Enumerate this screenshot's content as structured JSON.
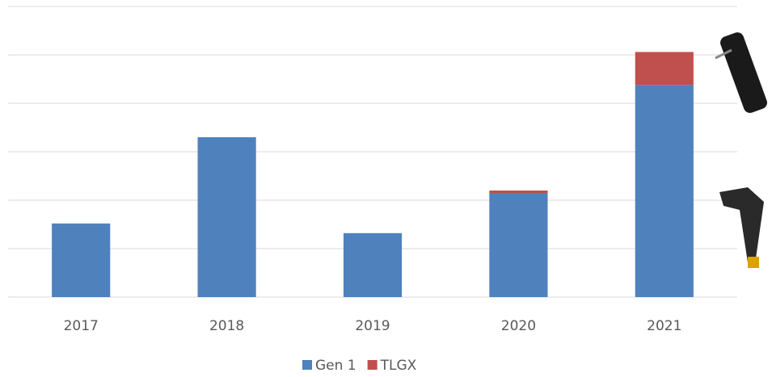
{
  "chart_data": {
    "type": "stacked_bar",
    "categories": [
      "2017",
      "2018",
      "2019",
      "2020",
      "2021"
    ],
    "series": [
      {
        "name": "Gen 1",
        "color": "#4f81bd",
        "values": [
          1.52,
          3.3,
          1.32,
          2.15,
          4.38
        ]
      },
      {
        "name": "TLGX",
        "color": "#c0504d",
        "values": [
          0,
          0,
          0,
          0.05,
          0.68
        ]
      }
    ],
    "ylim": [
      0,
      6
    ],
    "yticks": [
      0,
      1,
      2,
      3,
      4,
      5,
      6
    ],
    "grid": true,
    "tick_labels": false,
    "legend": "bottom"
  }
}
